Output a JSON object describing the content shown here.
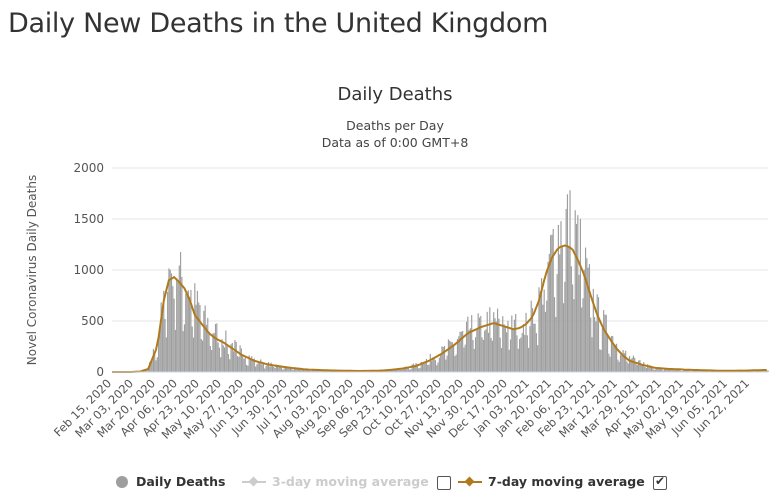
{
  "page": {
    "title": "Daily New Deaths in the United Kingdom"
  },
  "chart_data": {
    "type": "bar",
    "title": "Daily Deaths",
    "subtitle_line1": "Deaths per Day",
    "subtitle_line2": "Data as of 0:00 GMT+8",
    "ylabel": "Novel Coronavirus Daily Deaths",
    "xlabel": "",
    "ylim": [
      0,
      2000
    ],
    "y_ticks": [
      "0",
      "500",
      "1000",
      "1500",
      "2000"
    ],
    "x_ticks": [
      "Feb 15, 2020",
      "Mar 03, 2020",
      "Mar 20, 2020",
      "Apr 06, 2020",
      "Apr 23, 2020",
      "May 10, 2020",
      "May 27, 2020",
      "Jun 13, 2020",
      "Jun 30, 2020",
      "Jul 17, 2020",
      "Aug 03, 2020",
      "Aug 20, 2020",
      "Sep 06, 2020",
      "Sep 23, 2020",
      "Oct 10, 2020",
      "Oct 27, 2020",
      "Nov 13, 2020",
      "Nov 30, 2020",
      "Dec 17, 2020",
      "Jan 03, 2021",
      "Jan 20, 2021",
      "Feb 06, 2021",
      "Feb 23, 2021",
      "Mar 12, 2021",
      "Mar 29, 2021",
      "Apr 15, 2021",
      "May 02, 2021",
      "May 19, 2021",
      "Jun 05, 2021",
      "Jun 22, 2021"
    ],
    "grid": true,
    "legend_position": "bottom",
    "colors": {
      "bars": "#9e9e9e",
      "ma3": "#cccccc",
      "ma7": "#b07a1c",
      "grid": "#e6e6e6"
    },
    "series_anchors": {
      "note_unit": "x = days after Feb 15, 2020; y = deaths per day",
      "daily_deaths": [
        [
          0,
          0
        ],
        [
          14,
          0
        ],
        [
          22,
          5
        ],
        [
          28,
          40
        ],
        [
          35,
          300
        ],
        [
          40,
          700
        ],
        [
          44,
          980
        ],
        [
          48,
          1050
        ],
        [
          52,
          950
        ],
        [
          56,
          900
        ],
        [
          60,
          820
        ],
        [
          64,
          700
        ],
        [
          70,
          560
        ],
        [
          75,
          450
        ],
        [
          80,
          400
        ],
        [
          86,
          330
        ],
        [
          92,
          280
        ],
        [
          100,
          200
        ],
        [
          110,
          120
        ],
        [
          120,
          80
        ],
        [
          135,
          50
        ],
        [
          150,
          25
        ],
        [
          170,
          12
        ],
        [
          190,
          10
        ],
        [
          205,
          15
        ],
        [
          215,
          25
        ],
        [
          225,
          40
        ],
        [
          235,
          70
        ],
        [
          245,
          130
        ],
        [
          255,
          200
        ],
        [
          265,
          300
        ],
        [
          275,
          420
        ],
        [
          285,
          480
        ],
        [
          295,
          520
        ],
        [
          300,
          500
        ],
        [
          305,
          480
        ],
        [
          310,
          460
        ],
        [
          315,
          470
        ],
        [
          320,
          520
        ],
        [
          325,
          560
        ],
        [
          330,
          700
        ],
        [
          335,
          950
        ],
        [
          340,
          1200
        ],
        [
          345,
          1350
        ],
        [
          350,
          1500
        ],
        [
          353,
          1450
        ],
        [
          356,
          1400
        ],
        [
          360,
          1300
        ],
        [
          365,
          1050
        ],
        [
          370,
          800
        ],
        [
          375,
          600
        ],
        [
          380,
          480
        ],
        [
          385,
          380
        ],
        [
          390,
          280
        ],
        [
          395,
          200
        ],
        [
          400,
          140
        ],
        [
          410,
          90
        ],
        [
          420,
          50
        ],
        [
          430,
          30
        ],
        [
          450,
          15
        ],
        [
          470,
          10
        ],
        [
          490,
          12
        ],
        [
          500,
          15
        ],
        [
          507,
          20
        ]
      ],
      "ma7": [
        [
          0,
          0
        ],
        [
          14,
          0
        ],
        [
          22,
          5
        ],
        [
          28,
          30
        ],
        [
          35,
          250
        ],
        [
          40,
          700
        ],
        [
          44,
          900
        ],
        [
          48,
          930
        ],
        [
          52,
          880
        ],
        [
          56,
          820
        ],
        [
          60,
          710
        ],
        [
          64,
          560
        ],
        [
          70,
          460
        ],
        [
          75,
          380
        ],
        [
          80,
          330
        ],
        [
          86,
          290
        ],
        [
          92,
          240
        ],
        [
          100,
          170
        ],
        [
          110,
          110
        ],
        [
          120,
          75
        ],
        [
          135,
          45
        ],
        [
          150,
          25
        ],
        [
          170,
          15
        ],
        [
          190,
          10
        ],
        [
          205,
          12
        ],
        [
          215,
          20
        ],
        [
          225,
          35
        ],
        [
          235,
          60
        ],
        [
          245,
          110
        ],
        [
          255,
          180
        ],
        [
          265,
          270
        ],
        [
          275,
          380
        ],
        [
          285,
          440
        ],
        [
          295,
          480
        ],
        [
          300,
          460
        ],
        [
          305,
          440
        ],
        [
          310,
          420
        ],
        [
          315,
          430
        ],
        [
          320,
          470
        ],
        [
          325,
          540
        ],
        [
          330,
          700
        ],
        [
          335,
          950
        ],
        [
          340,
          1120
        ],
        [
          345,
          1220
        ],
        [
          350,
          1240
        ],
        [
          353,
          1230
        ],
        [
          356,
          1200
        ],
        [
          360,
          1100
        ],
        [
          365,
          950
        ],
        [
          370,
          750
        ],
        [
          375,
          560
        ],
        [
          380,
          420
        ],
        [
          385,
          320
        ],
        [
          390,
          230
        ],
        [
          395,
          160
        ],
        [
          400,
          110
        ],
        [
          410,
          70
        ],
        [
          420,
          40
        ],
        [
          430,
          30
        ],
        [
          450,
          20
        ],
        [
          470,
          12
        ],
        [
          490,
          14
        ],
        [
          500,
          18
        ],
        [
          507,
          20
        ]
      ]
    }
  },
  "legend": {
    "daily_deaths": "Daily Deaths",
    "ma3": "3-day moving average",
    "ma7": "7-day moving average",
    "ma3_checked": false,
    "ma7_checked": true
  }
}
